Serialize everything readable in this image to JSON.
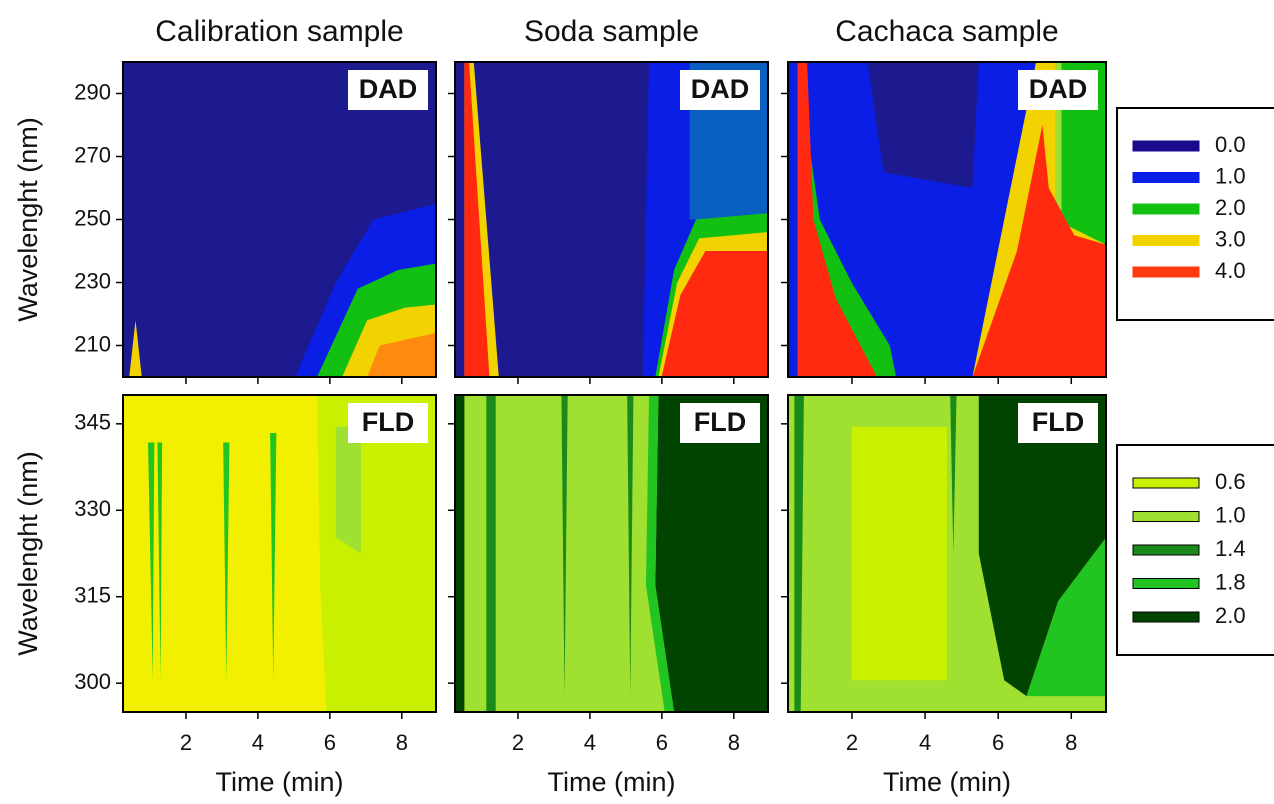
{
  "chart_data": [
    {
      "type": "contour",
      "title": "Calibration sample",
      "label": "DAD",
      "ylabel": "Wavelenght (nm)",
      "xlim": [
        0.25,
        8.95
      ],
      "ylim": [
        200,
        300
      ],
      "xticks": [
        2,
        4,
        6,
        8
      ],
      "yticks": [
        210,
        230,
        250,
        270,
        290
      ]
    },
    {
      "type": "contour",
      "title": "Soda sample",
      "label": "DAD",
      "xlim": [
        0.25,
        8.95
      ],
      "ylim": [
        200,
        300
      ],
      "xticks": [
        2,
        4,
        6,
        8
      ],
      "yticks": [
        210,
        230,
        250,
        270,
        290
      ]
    },
    {
      "type": "contour",
      "title": "Cachaca sample",
      "label": "DAD",
      "xlim": [
        0.25,
        8.95
      ],
      "ylim": [
        200,
        300
      ],
      "xticks": [
        2,
        4,
        6,
        8
      ],
      "yticks": [
        210,
        230,
        250,
        270,
        290
      ],
      "legend": {
        "levels": [
          {
            "value": 0,
            "label": "0.0"
          },
          {
            "value": 1,
            "label": "1.0"
          },
          {
            "value": 2,
            "label": "2.0"
          },
          {
            "value": 3,
            "label": "3.0"
          },
          {
            "value": 4,
            "label": "4.0"
          }
        ],
        "colors": [
          "#1a0a8c",
          "#0a1ee6",
          "#12c012",
          "#f2d200",
          "#ff3a10"
        ]
      }
    },
    {
      "type": "contour",
      "label": "FLD",
      "ylabel": "Wavelenght (nm)",
      "xlabel": "Time (min)",
      "xlim": [
        0.25,
        8.95
      ],
      "ylim": [
        295,
        350
      ],
      "xticks": [
        2,
        4,
        6,
        8
      ],
      "yticks": [
        300,
        315,
        330,
        345
      ]
    },
    {
      "type": "contour",
      "label": "FLD",
      "xlabel": "Time (min)",
      "xlim": [
        0.25,
        8.95
      ],
      "ylim": [
        295,
        350
      ],
      "xticks": [
        2,
        4,
        6,
        8
      ],
      "yticks": [
        300,
        315,
        330,
        345
      ]
    },
    {
      "type": "contour",
      "label": "FLD",
      "xlabel": "Time (min)",
      "xlim": [
        0.25,
        8.95
      ],
      "ylim": [
        295,
        350
      ],
      "xticks": [
        2,
        4,
        6,
        8
      ],
      "yticks": [
        300,
        315,
        330,
        345
      ],
      "legend": {
        "levels": [
          {
            "value": 0.6,
            "label": "0.6"
          },
          {
            "value": 1,
            "label": "1.0"
          },
          {
            "value": 1.4,
            "label": "1.4"
          },
          {
            "value": 1.8,
            "label": "1.8"
          },
          {
            "value": 2,
            "label": "2.0"
          }
        ],
        "colors": [
          "#c8f000",
          "#a0e030",
          "#1a8a1a",
          "#22c422",
          "#004400"
        ]
      }
    }
  ]
}
